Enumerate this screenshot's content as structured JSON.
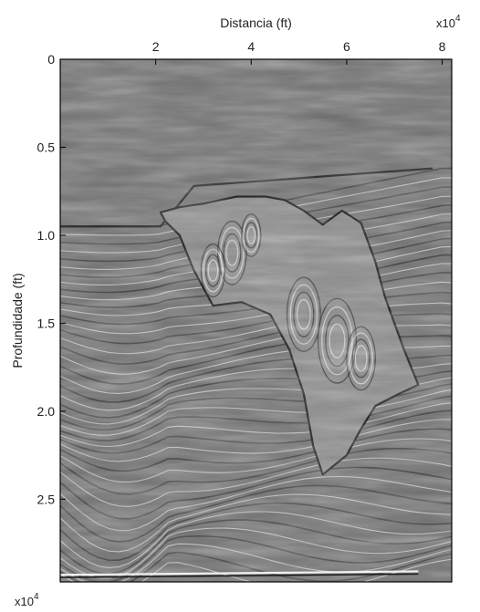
{
  "chart_data": {
    "type": "heatmap",
    "title": "",
    "xlabel": "Distancia (ft)",
    "ylabel": "Profundidade (ft)",
    "x_axis_position": "top",
    "y_axis_inverted": true,
    "x_multiplier": "x10",
    "x_multiplier_exponent": "4",
    "y_multiplier": "x10",
    "y_multiplier_exponent": "4",
    "xlim": [
      0,
      8.2
    ],
    "ylim": [
      0,
      2.97
    ],
    "xticks": [
      2,
      4,
      6,
      8
    ],
    "xtick_labels": [
      "2",
      "4",
      "6",
      "8"
    ],
    "yticks": [
      0,
      0.5,
      1.0,
      1.5,
      2.0,
      2.5
    ],
    "ytick_labels": [
      "0",
      "0.5",
      "1.0",
      "1.5",
      "2.0",
      "2.5"
    ],
    "colormap": "gray",
    "grid": false,
    "legend": "none",
    "salt_body_outline": [
      [
        2.1,
        0.87
      ],
      [
        2.5,
        0.84
      ],
      [
        3.0,
        0.82
      ],
      [
        3.7,
        0.78
      ],
      [
        4.3,
        0.78
      ],
      [
        4.7,
        0.8
      ],
      [
        5.1,
        0.86
      ],
      [
        5.5,
        0.94
      ],
      [
        5.9,
        0.86
      ],
      [
        6.3,
        0.93
      ],
      [
        6.6,
        1.15
      ],
      [
        6.8,
        1.35
      ],
      [
        7.0,
        1.5
      ],
      [
        7.2,
        1.65
      ],
      [
        7.5,
        1.85
      ],
      [
        7.1,
        1.9
      ],
      [
        6.6,
        1.97
      ],
      [
        6.3,
        2.1
      ],
      [
        6.0,
        2.25
      ],
      [
        5.5,
        2.36
      ],
      [
        5.3,
        2.2
      ],
      [
        5.1,
        1.9
      ],
      [
        4.8,
        1.65
      ],
      [
        4.4,
        1.45
      ],
      [
        3.8,
        1.38
      ],
      [
        3.2,
        1.4
      ],
      [
        2.8,
        1.2
      ],
      [
        2.5,
        1.0
      ],
      [
        2.2,
        0.92
      ]
    ],
    "water_bottom_depth_left": 0.95,
    "water_bottom_depth_right": 0.62
  }
}
